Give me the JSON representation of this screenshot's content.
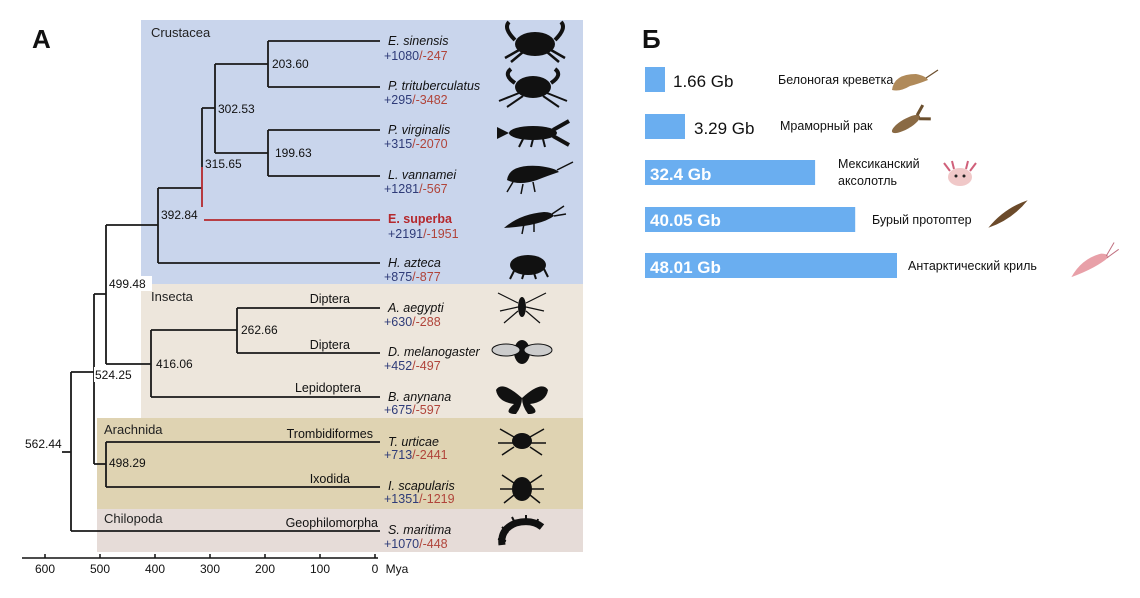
{
  "panel_a": {
    "label": "А",
    "groups": [
      {
        "name": "Crustacea",
        "color": "#c9d5ec"
      },
      {
        "name": "Insecta",
        "color": "#ede6dc"
      },
      {
        "name": "Arachnida",
        "color": "#dfd3b2"
      },
      {
        "name": "Chilopoda",
        "color": "#e6dcd8"
      }
    ],
    "node_ages": {
      "n203": "203.60",
      "n302": "302.53",
      "n199": "199.63",
      "n315": "315.65",
      "n392": "392.84",
      "n499": "499.48",
      "n262": "262.66",
      "n416": "416.06",
      "n524": "524.25",
      "n498": "498.29",
      "n562": "562.44"
    },
    "taxa": [
      {
        "name": "E. sinensis",
        "gain": "+1080",
        "loss": "/-247",
        "order": "",
        "silhouette": "crab-icon"
      },
      {
        "name": "P. trituberculatus",
        "gain": "+295",
        "loss": "/-3482",
        "order": "",
        "silhouette": "crab-icon"
      },
      {
        "name": "P. virginalis",
        "gain": "+315",
        "loss": "/-2070",
        "order": "",
        "silhouette": "crayfish-icon"
      },
      {
        "name": "L. vannamei",
        "gain": "+1281",
        "loss": "/-567",
        "order": "",
        "silhouette": "shrimp-icon"
      },
      {
        "name": "E. superba",
        "gain": "+2191",
        "loss": "/-1951",
        "order": "",
        "silhouette": "krill-icon"
      },
      {
        "name": "H. azteca",
        "gain": "+875",
        "loss": "/-877",
        "order": "",
        "silhouette": "amphipod-icon"
      },
      {
        "name": "A. aegypti",
        "gain": "+630",
        "loss": "/-288",
        "order": "Diptera",
        "silhouette": "mosquito-icon"
      },
      {
        "name": "D. melanogaster",
        "gain": "+452",
        "loss": "/-497",
        "order": "Diptera",
        "silhouette": "fly-icon"
      },
      {
        "name": "B. anynana",
        "gain": "+675",
        "loss": "/-597",
        "order": "Lepidoptera",
        "silhouette": "butterfly-icon"
      },
      {
        "name": "T. urticae",
        "gain": "+713",
        "loss": "/-2441",
        "order": "Trombidiformes",
        "silhouette": "mite-icon"
      },
      {
        "name": "I. scapularis",
        "gain": "+1351",
        "loss": "/-1219",
        "order": "Ixodida",
        "silhouette": "tick-icon"
      },
      {
        "name": "S. maritima",
        "gain": "+1070",
        "loss": "/-448",
        "order": "Geophilomorpha",
        "silhouette": "centipede-icon"
      }
    ],
    "axis": {
      "ticks": [
        "600",
        "500",
        "400",
        "300",
        "200",
        "100",
        "0"
      ],
      "unit": "Mya"
    },
    "colors": {
      "highlight": "#b5282d",
      "gain": "#2e3b78",
      "loss": "#b0443a",
      "branch": "#1a1a1a"
    }
  },
  "panel_b": {
    "label": "Б",
    "bar_color": "#6aaef0",
    "bars": [
      {
        "label": "1.66 Gb",
        "species": "Белоногая креветка",
        "icon": "shrimp-icon"
      },
      {
        "label": "3.29 Gb",
        "species": "Мраморный рак",
        "icon": "crayfish-icon"
      },
      {
        "label": "32.4 Gb",
        "species": "Мексиканский аксолотль",
        "species_line1": "Мексиканский",
        "species_line2": "аксолотль",
        "icon": "axolotl-icon"
      },
      {
        "label": "40.05 Gb",
        "species": "Бурый протоптер",
        "icon": "lungfish-icon"
      },
      {
        "label": "48.01 Gb",
        "species": "Антарктический криль",
        "icon": "krill-icon"
      }
    ],
    "chart_data": {
      "type": "bar",
      "categories": [
        "Белоногая креветка",
        "Мраморный рак",
        "Мексиканский аксолотль",
        "Бурый протоптер",
        "Антарктический криль"
      ],
      "values": [
        1.66,
        3.29,
        32.4,
        40.05,
        48.01
      ],
      "unit": "Gb"
    }
  }
}
